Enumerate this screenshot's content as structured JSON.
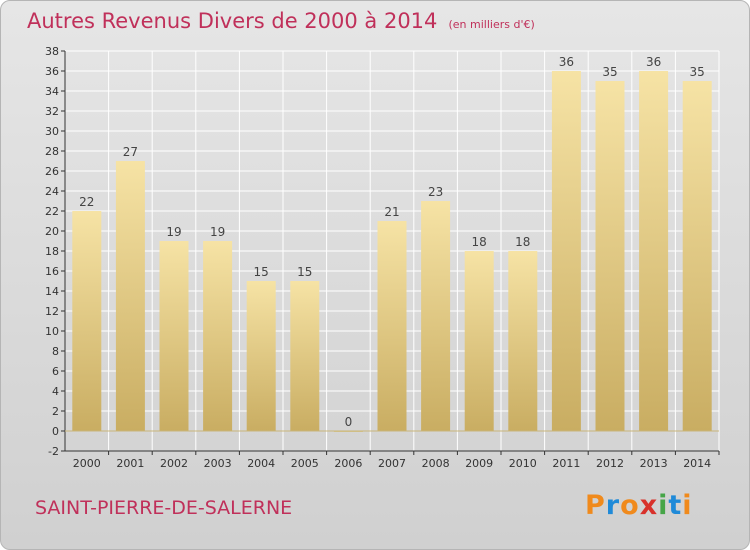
{
  "header": {
    "title": "Autres Revenus Divers de 2000 à 2014",
    "subtitle": "(en milliers d'€)"
  },
  "footer": {
    "commune": "SAINT-PIERRE-DE-SALERNE",
    "logo_text": "Proxiti",
    "logo_letters": [
      "P",
      "r",
      "o",
      "x",
      "i",
      "t",
      "i"
    ],
    "logo_colors": [
      "#f08a1c",
      "#1f8ad8",
      "#f08a1c",
      "#d8312b",
      "#46a548",
      "#1f8ad8",
      "#f08a1c"
    ]
  },
  "chart_data": {
    "type": "bar",
    "title": "Autres Revenus Divers de 2000 à 2014",
    "subtitle": "(en milliers d'€)",
    "categories": [
      "2000",
      "2001",
      "2002",
      "2003",
      "2004",
      "2005",
      "2006",
      "2007",
      "2008",
      "2009",
      "2010",
      "2011",
      "2012",
      "2013",
      "2014"
    ],
    "values": [
      22,
      27,
      19,
      19,
      15,
      15,
      0,
      21,
      23,
      18,
      18,
      36,
      35,
      36,
      35
    ],
    "data_labels": [
      "22",
      "27",
      "19",
      "19",
      "15",
      "15",
      "0",
      "21",
      "23",
      "18",
      "18",
      "36",
      "35",
      "36",
      "35"
    ],
    "yticks": [
      -2,
      0,
      2,
      4,
      6,
      8,
      10,
      12,
      14,
      16,
      18,
      20,
      22,
      24,
      26,
      28,
      30,
      32,
      34,
      36,
      38
    ],
    "ylim": [
      -2,
      38
    ],
    "grid": true,
    "colors": {
      "bar_light": "#f6e3a5",
      "bar_dark": "#c9ad62",
      "axis": "#333333",
      "grid": "#ffffff"
    }
  }
}
